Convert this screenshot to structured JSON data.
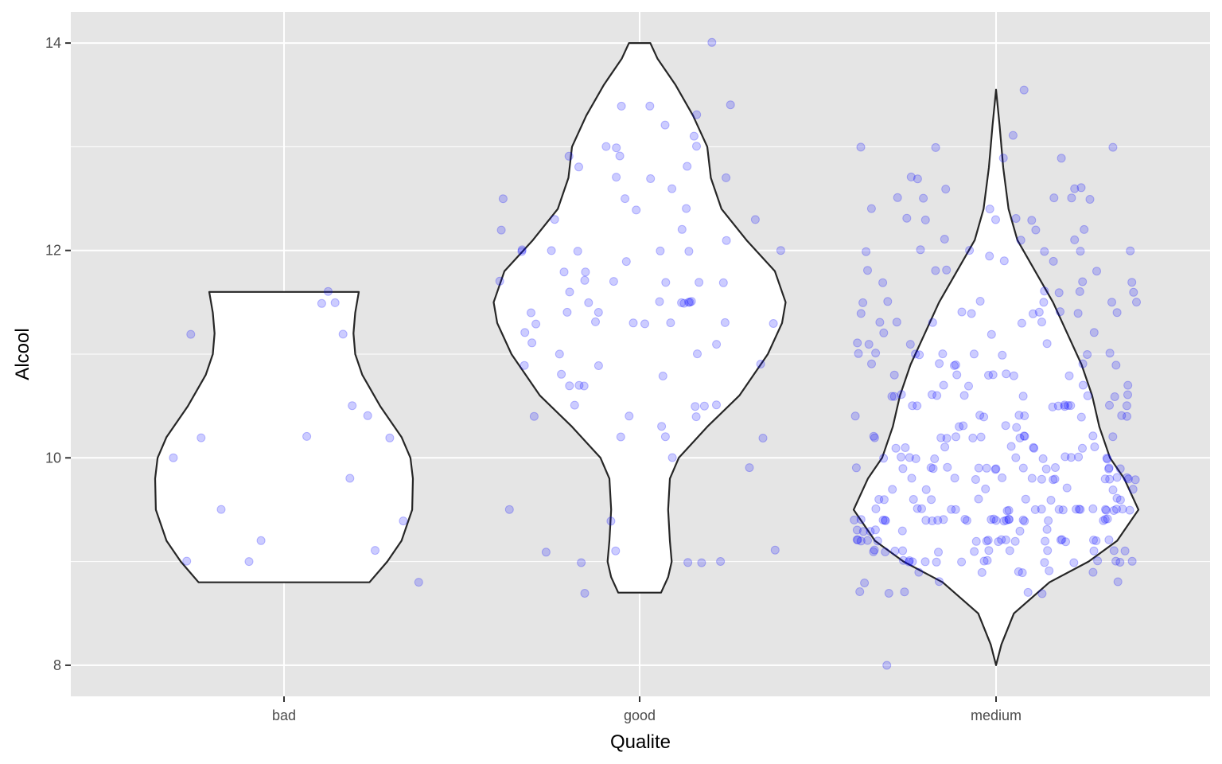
{
  "chart_data": {
    "type": "violin",
    "xlabel": "Qualite",
    "ylabel": "Alcool",
    "categories": [
      "bad",
      "good",
      "medium"
    ],
    "y_ticks": [
      8,
      10,
      12,
      14
    ],
    "ylim": [
      7.7,
      14.3
    ],
    "grid": true,
    "colors": {
      "panel": "#e5e5e5",
      "grid": "#ffffff",
      "violin_fill": "#ffffff",
      "violin_stroke": "#262626",
      "points": "#0000ff"
    },
    "violins": [
      {
        "category": "bad",
        "profile": [
          {
            "y": 8.8,
            "w": 0.24
          },
          {
            "y": 9.0,
            "w": 0.29
          },
          {
            "y": 9.2,
            "w": 0.33
          },
          {
            "y": 9.5,
            "w": 0.36
          },
          {
            "y": 9.8,
            "w": 0.362
          },
          {
            "y": 10.0,
            "w": 0.355
          },
          {
            "y": 10.2,
            "w": 0.33
          },
          {
            "y": 10.5,
            "w": 0.27
          },
          {
            "y": 10.8,
            "w": 0.22
          },
          {
            "y": 11.0,
            "w": 0.2
          },
          {
            "y": 11.2,
            "w": 0.195
          },
          {
            "y": 11.4,
            "w": 0.2
          },
          {
            "y": 11.6,
            "w": 0.21
          }
        ]
      },
      {
        "category": "good",
        "profile": [
          {
            "y": 8.7,
            "w": 0.06
          },
          {
            "y": 8.85,
            "w": 0.08
          },
          {
            "y": 9.0,
            "w": 0.09
          },
          {
            "y": 9.2,
            "w": 0.085
          },
          {
            "y": 9.5,
            "w": 0.08
          },
          {
            "y": 9.8,
            "w": 0.085
          },
          {
            "y": 10.0,
            "w": 0.11
          },
          {
            "y": 10.3,
            "w": 0.19
          },
          {
            "y": 10.6,
            "w": 0.28
          },
          {
            "y": 11.0,
            "w": 0.36
          },
          {
            "y": 11.3,
            "w": 0.4
          },
          {
            "y": 11.5,
            "w": 0.41
          },
          {
            "y": 11.8,
            "w": 0.38
          },
          {
            "y": 12.1,
            "w": 0.3
          },
          {
            "y": 12.4,
            "w": 0.23
          },
          {
            "y": 12.7,
            "w": 0.2
          },
          {
            "y": 13.0,
            "w": 0.19
          },
          {
            "y": 13.3,
            "w": 0.15
          },
          {
            "y": 13.6,
            "w": 0.1
          },
          {
            "y": 13.85,
            "w": 0.05
          },
          {
            "y": 14.0,
            "w": 0.03
          }
        ]
      },
      {
        "category": "medium",
        "profile": [
          {
            "y": 8.0,
            "w": 0.0
          },
          {
            "y": 8.2,
            "w": 0.015
          },
          {
            "y": 8.5,
            "w": 0.05
          },
          {
            "y": 8.8,
            "w": 0.15
          },
          {
            "y": 9.0,
            "w": 0.26
          },
          {
            "y": 9.2,
            "w": 0.34
          },
          {
            "y": 9.5,
            "w": 0.4
          },
          {
            "y": 9.8,
            "w": 0.36
          },
          {
            "y": 10.0,
            "w": 0.32
          },
          {
            "y": 10.3,
            "w": 0.29
          },
          {
            "y": 10.6,
            "w": 0.27
          },
          {
            "y": 10.9,
            "w": 0.24
          },
          {
            "y": 11.2,
            "w": 0.2
          },
          {
            "y": 11.5,
            "w": 0.16
          },
          {
            "y": 11.8,
            "w": 0.11
          },
          {
            "y": 12.1,
            "w": 0.06
          },
          {
            "y": 12.4,
            "w": 0.035
          },
          {
            "y": 12.8,
            "w": 0.02
          },
          {
            "y": 13.2,
            "w": 0.01
          },
          {
            "y": 13.55,
            "w": 0.0
          }
        ]
      }
    ],
    "points": [
      {
        "category": "bad",
        "values": [
          11.6,
          11.5,
          11.5,
          11.2,
          11.2,
          10.5,
          10.4,
          10.2,
          10.2,
          10.2,
          10.0,
          9.8,
          9.5,
          9.4,
          9.2,
          9.1,
          9.0,
          9.0,
          8.8
        ]
      },
      {
        "category": "good",
        "values": [
          14.0,
          13.4,
          13.4,
          13.4,
          13.3,
          13.2,
          13.1,
          13.0,
          13.0,
          13.0,
          12.9,
          12.9,
          12.8,
          12.8,
          12.7,
          12.7,
          12.7,
          12.6,
          12.5,
          12.5,
          12.4,
          12.4,
          12.3,
          12.3,
          12.2,
          12.2,
          12.1,
          12.0,
          12.0,
          12.0,
          12.0,
          12.0,
          12.0,
          12.0,
          11.9,
          11.8,
          11.8,
          11.7,
          11.7,
          11.7,
          11.7,
          11.7,
          11.7,
          11.6,
          11.5,
          11.5,
          11.5,
          11.5,
          11.5,
          11.5,
          11.5,
          11.4,
          11.4,
          11.4,
          11.3,
          11.3,
          11.3,
          11.3,
          11.3,
          11.3,
          11.3,
          11.2,
          11.1,
          11.1,
          11.0,
          11.0,
          10.9,
          10.9,
          10.9,
          10.8,
          10.8,
          10.7,
          10.7,
          10.7,
          10.5,
          10.5,
          10.5,
          10.5,
          10.4,
          10.4,
          10.4,
          10.3,
          10.2,
          10.2,
          10.2,
          10.0,
          9.9,
          9.5,
          9.4,
          9.1,
          9.1,
          9.1,
          9.0,
          9.0,
          9.0,
          9.0,
          8.7
        ]
      },
      {
        "category": "medium",
        "values": [
          13.55,
          13.1,
          13.0,
          13.0,
          13.0,
          12.9,
          12.9,
          12.7,
          12.7,
          12.6,
          12.6,
          12.6,
          12.5,
          12.5,
          12.5,
          12.5,
          12.5,
          12.4,
          12.4,
          12.3,
          12.3,
          12.3,
          12.3,
          12.3,
          12.2,
          12.2,
          12.1,
          12.1,
          12.1,
          12.0,
          12.0,
          12.0,
          12.0,
          12.0,
          12.0,
          11.95,
          11.9,
          11.9,
          11.8,
          11.8,
          11.8,
          11.8,
          11.7,
          11.7,
          11.7,
          11.6,
          11.6,
          11.6,
          11.6,
          11.5,
          11.5,
          11.5,
          11.5,
          11.5,
          11.5,
          11.4,
          11.4,
          11.4,
          11.4,
          11.4,
          11.4,
          11.4,
          11.4,
          11.3,
          11.3,
          11.3,
          11.3,
          11.3,
          11.2,
          11.2,
          11.2,
          11.1,
          11.1,
          11.1,
          11.1,
          11.0,
          11.0,
          11.0,
          11.0,
          11.0,
          11.0,
          11.0,
          11.0,
          11.0,
          10.9,
          10.9,
          10.9,
          10.9,
          10.9,
          10.9,
          10.8,
          10.8,
          10.8,
          10.8,
          10.8,
          10.8,
          10.8,
          10.7,
          10.7,
          10.7,
          10.7,
          10.6,
          10.6,
          10.6,
          10.6,
          10.6,
          10.6,
          10.6,
          10.6,
          10.6,
          10.6,
          10.5,
          10.5,
          10.5,
          10.5,
          10.5,
          10.5,
          10.5,
          10.5,
          10.5,
          10.5,
          10.4,
          10.4,
          10.4,
          10.4,
          10.4,
          10.4,
          10.4,
          10.4,
          10.3,
          10.3,
          10.3,
          10.3,
          10.2,
          10.2,
          10.2,
          10.2,
          10.2,
          10.2,
          10.2,
          10.2,
          10.2,
          10.2,
          10.2,
          10.2,
          10.1,
          10.1,
          10.1,
          10.1,
          10.1,
          10.1,
          10.1,
          10.1,
          10.0,
          10.0,
          10.0,
          10.0,
          10.0,
          10.0,
          10.0,
          10.0,
          10.0,
          10.0,
          10.0,
          10.0,
          9.9,
          9.9,
          9.9,
          9.9,
          9.9,
          9.9,
          9.9,
          9.9,
          9.9,
          9.9,
          9.9,
          9.9,
          9.9,
          9.9,
          9.9,
          9.8,
          9.8,
          9.8,
          9.8,
          9.8,
          9.8,
          9.8,
          9.8,
          9.8,
          9.8,
          9.8,
          9.8,
          9.8,
          9.8,
          9.7,
          9.7,
          9.7,
          9.7,
          9.7,
          9.7,
          9.6,
          9.6,
          9.6,
          9.6,
          9.6,
          9.6,
          9.6,
          9.6,
          9.6,
          9.5,
          9.5,
          9.5,
          9.5,
          9.5,
          9.5,
          9.5,
          9.5,
          9.5,
          9.5,
          9.5,
          9.5,
          9.5,
          9.5,
          9.5,
          9.5,
          9.5,
          9.5,
          9.5,
          9.5,
          9.5,
          9.4,
          9.4,
          9.4,
          9.4,
          9.4,
          9.4,
          9.4,
          9.4,
          9.4,
          9.4,
          9.4,
          9.4,
          9.4,
          9.4,
          9.4,
          9.4,
          9.4,
          9.4,
          9.4,
          9.4,
          9.4,
          9.4,
          9.4,
          9.4,
          9.3,
          9.3,
          9.3,
          9.3,
          9.3,
          9.3,
          9.3,
          9.2,
          9.2,
          9.2,
          9.2,
          9.2,
          9.2,
          9.2,
          9.2,
          9.2,
          9.2,
          9.2,
          9.2,
          9.2,
          9.2,
          9.2,
          9.2,
          9.2,
          9.2,
          9.2,
          9.1,
          9.1,
          9.1,
          9.1,
          9.1,
          9.1,
          9.1,
          9.1,
          9.1,
          9.1,
          9.1,
          9.1,
          9.1,
          9.0,
          9.0,
          9.0,
          9.0,
          9.0,
          9.0,
          9.0,
          9.0,
          9.0,
          9.0,
          9.0,
          9.0,
          9.0,
          9.0,
          9.0,
          8.9,
          8.9,
          8.9,
          8.9,
          8.9,
          8.9,
          8.8,
          8.8,
          8.8,
          8.7,
          8.7,
          8.7,
          8.7,
          8.7,
          8.0
        ]
      }
    ]
  }
}
